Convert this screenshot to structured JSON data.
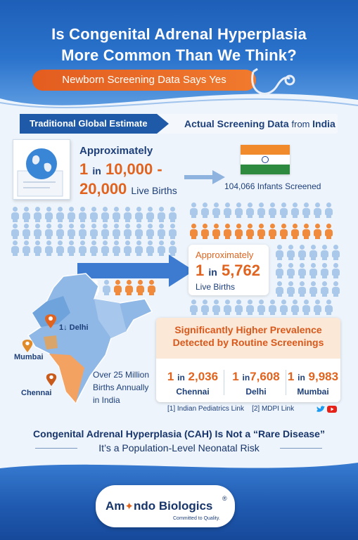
{
  "header": {
    "title_line1": "Is Congenital Adrenal Hyperplasia",
    "title_line2": "More Common Than We Think?",
    "subtitle": "Newborn Screening Data Says Yes"
  },
  "banner": {
    "left": "Traditional Global Estimate",
    "right_main": "Actual Screening Data ",
    "right_from": "from ",
    "right_country": "India"
  },
  "global_estimate": {
    "approx": "Approximately",
    "one": "1",
    "in": "in",
    "range_a": "10,000 -",
    "range_b": "20,000",
    "unit": "Live Births"
  },
  "india": {
    "screened": "104,066 Infants Screened",
    "approx": "Approximately",
    "one": "1",
    "in": "in",
    "value": "5,762",
    "unit": "Live Births"
  },
  "map": {
    "delhi": "1↓ Delhi",
    "mumbai": "Mumbai",
    "chennai": "Chennai",
    "births_l1": "Over 25 Million",
    "births_l2": "Births Annually",
    "births_l3": "in India"
  },
  "prevalence": {
    "title_l1": "Significantly Higher Prevalence",
    "title_l2": "Detected by Routine Screenings",
    "stats": [
      {
        "one": "1",
        "in": "in",
        "value": "2,036",
        "city": "Chennai"
      },
      {
        "one": "1",
        "in": "in",
        "value": "7,608",
        "city": "Delhi"
      },
      {
        "one": "1",
        "in": "in",
        "value": "9,983",
        "city": "Mumbai"
      }
    ]
  },
  "refs": {
    "r1": "[1] Indian Pediatrics Link",
    "r2": "[2] MDPI Link"
  },
  "conclusion": {
    "line1": "Congenital Adrenal Hyperplasia (CAH) Is Not a “Rare Disease”",
    "line2": "It’s a Population-Level Neonatal Risk"
  },
  "logo": {
    "name_a": "Am",
    "name_b": "ndo",
    "name_c": " Biologics",
    "reg": "®",
    "tagline": "Committed to Quality."
  },
  "colors": {
    "brand_blue": "#1f5aa8",
    "accent_orange": "#e0641f",
    "person_blue": "#a9c8ea",
    "person_orange": "#f08a3c"
  }
}
